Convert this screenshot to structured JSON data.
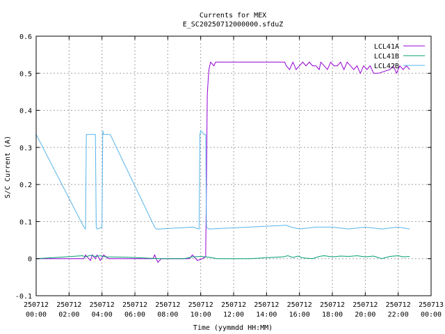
{
  "chart_data": {
    "type": "line",
    "title": "Currents for MEX",
    "subtitle": "E_SC20250712000000.sfduZ",
    "xlabel": "Time (yymmdd HH:MM)",
    "ylabel": "S/C Current (A)",
    "xlim": [
      0,
      24
    ],
    "ylim": [
      -0.1,
      0.6
    ],
    "grid": true,
    "legend_position": "top-right",
    "yticks": [
      "-0.1",
      "0",
      "0.1",
      "0.2",
      "0.3",
      "0.4",
      "0.5",
      "0.6"
    ],
    "ytick_values": [
      -0.1,
      0,
      0.1,
      0.2,
      0.3,
      0.4,
      0.5,
      0.6
    ],
    "xticks": [
      {
        "h": 0,
        "date": "250712",
        "time": "00:00"
      },
      {
        "h": 2,
        "date": "250712",
        "time": "02:00"
      },
      {
        "h": 4,
        "date": "250712",
        "time": "04:00"
      },
      {
        "h": 6,
        "date": "250712",
        "time": "06:00"
      },
      {
        "h": 8,
        "date": "250712",
        "time": "08:00"
      },
      {
        "h": 10,
        "date": "250712",
        "time": "10:00"
      },
      {
        "h": 12,
        "date": "250712",
        "time": "12:00"
      },
      {
        "h": 14,
        "date": "250712",
        "time": "14:00"
      },
      {
        "h": 16,
        "date": "250712",
        "time": "16:00"
      },
      {
        "h": 18,
        "date": "250712",
        "time": "18:00"
      },
      {
        "h": 20,
        "date": "250712",
        "time": "20:00"
      },
      {
        "h": 22,
        "date": "250712",
        "time": "22:00"
      },
      {
        "h": 24,
        "date": "250713",
        "time": "00:00"
      }
    ],
    "series": [
      {
        "name": "LCL41A",
        "color": "#9400d3",
        "x": [
          0,
          2.9,
          3.0,
          3.3,
          3.4,
          3.6,
          3.7,
          3.9,
          4.1,
          4.4,
          7.1,
          7.2,
          7.4,
          7.6,
          9.3,
          9.5,
          9.8,
          10.1,
          10.3,
          10.35,
          10.4,
          10.45,
          10.5,
          10.6,
          10.8,
          10.9,
          15.1,
          15.2,
          15.4,
          15.6,
          15.7,
          15.8,
          16.0,
          16.2,
          16.4,
          16.6,
          16.8,
          17.0,
          17.2,
          17.3,
          17.5,
          17.7,
          17.9,
          18.1,
          18.3,
          18.5,
          18.7,
          18.9,
          19.1,
          19.3,
          19.5,
          19.7,
          19.9,
          20.1,
          20.3,
          20.5,
          20.8,
          21.5,
          21.7,
          21.9,
          22.1,
          22.3,
          22.5,
          22.7
        ],
        "y": [
          0,
          0,
          0.01,
          -0.005,
          0.01,
          0,
          0.01,
          -0.005,
          0.01,
          0,
          0,
          0.01,
          -0.01,
          0,
          0,
          0.01,
          -0.005,
          0,
          0.005,
          0.2,
          0.44,
          0.48,
          0.51,
          0.53,
          0.52,
          0.53,
          0.53,
          0.52,
          0.51,
          0.53,
          0.52,
          0.51,
          0.52,
          0.53,
          0.52,
          0.53,
          0.52,
          0.52,
          0.51,
          0.53,
          0.52,
          0.51,
          0.53,
          0.52,
          0.52,
          0.53,
          0.51,
          0.53,
          0.52,
          0.51,
          0.52,
          0.5,
          0.52,
          0.51,
          0.52,
          0.5,
          0.5,
          0.51,
          0.52,
          0.5,
          0.52,
          0.51,
          0.52,
          0.51
        ]
      },
      {
        "name": "LCL41B",
        "color": "#009e73",
        "x": [
          0,
          1.5,
          2.8,
          3.0,
          3.3,
          3.6,
          3.9,
          4.2,
          5.5,
          7.0,
          7.5,
          9.0,
          9.5,
          10.0,
          10.5,
          11.0,
          13.0,
          15.0,
          15.3,
          15.6,
          15.9,
          16.2,
          16.8,
          17.2,
          17.5,
          18.0,
          18.5,
          19.0,
          19.5,
          20.0,
          20.5,
          21.0,
          21.5,
          22.0,
          22.3,
          22.7
        ],
        "y": [
          0,
          0.004,
          0.008,
          0.005,
          0.009,
          0.006,
          0.008,
          0.005,
          0.004,
          0.001,
          0,
          0,
          0.005,
          0.006,
          0.004,
          0,
          0,
          0.005,
          0.008,
          0.003,
          0.007,
          0.002,
          0.0,
          0.006,
          0.008,
          0.005,
          0.007,
          0.006,
          0.008,
          0.005,
          0.007,
          0,
          0.006,
          0.008,
          0.005,
          0.006
        ]
      },
      {
        "name": "LCL42B",
        "color": "#56b4e9",
        "x": [
          0,
          2.9,
          3.0,
          3.05,
          3.1,
          3.6,
          3.65,
          3.7,
          4.0,
          4.05,
          4.1,
          4.5,
          7.2,
          7.3,
          7.5,
          9.5,
          9.9,
          9.95,
          10.0,
          10.2,
          10.3,
          10.35,
          10.5,
          15.2,
          15.5,
          16.0,
          17.0,
          18.0,
          19.0,
          20.0,
          21.0,
          22.0,
          22.7
        ],
        "y": [
          0.335,
          0.085,
          0.08,
          0.335,
          0.335,
          0.335,
          0.085,
          0.08,
          0.085,
          0.345,
          0.335,
          0.335,
          0.085,
          0.08,
          0.08,
          0.085,
          0.08,
          0.335,
          0.345,
          0.335,
          0.335,
          0.085,
          0.08,
          0.09,
          0.085,
          0.08,
          0.085,
          0.085,
          0.08,
          0.085,
          0.08,
          0.085,
          0.08
        ]
      }
    ]
  }
}
